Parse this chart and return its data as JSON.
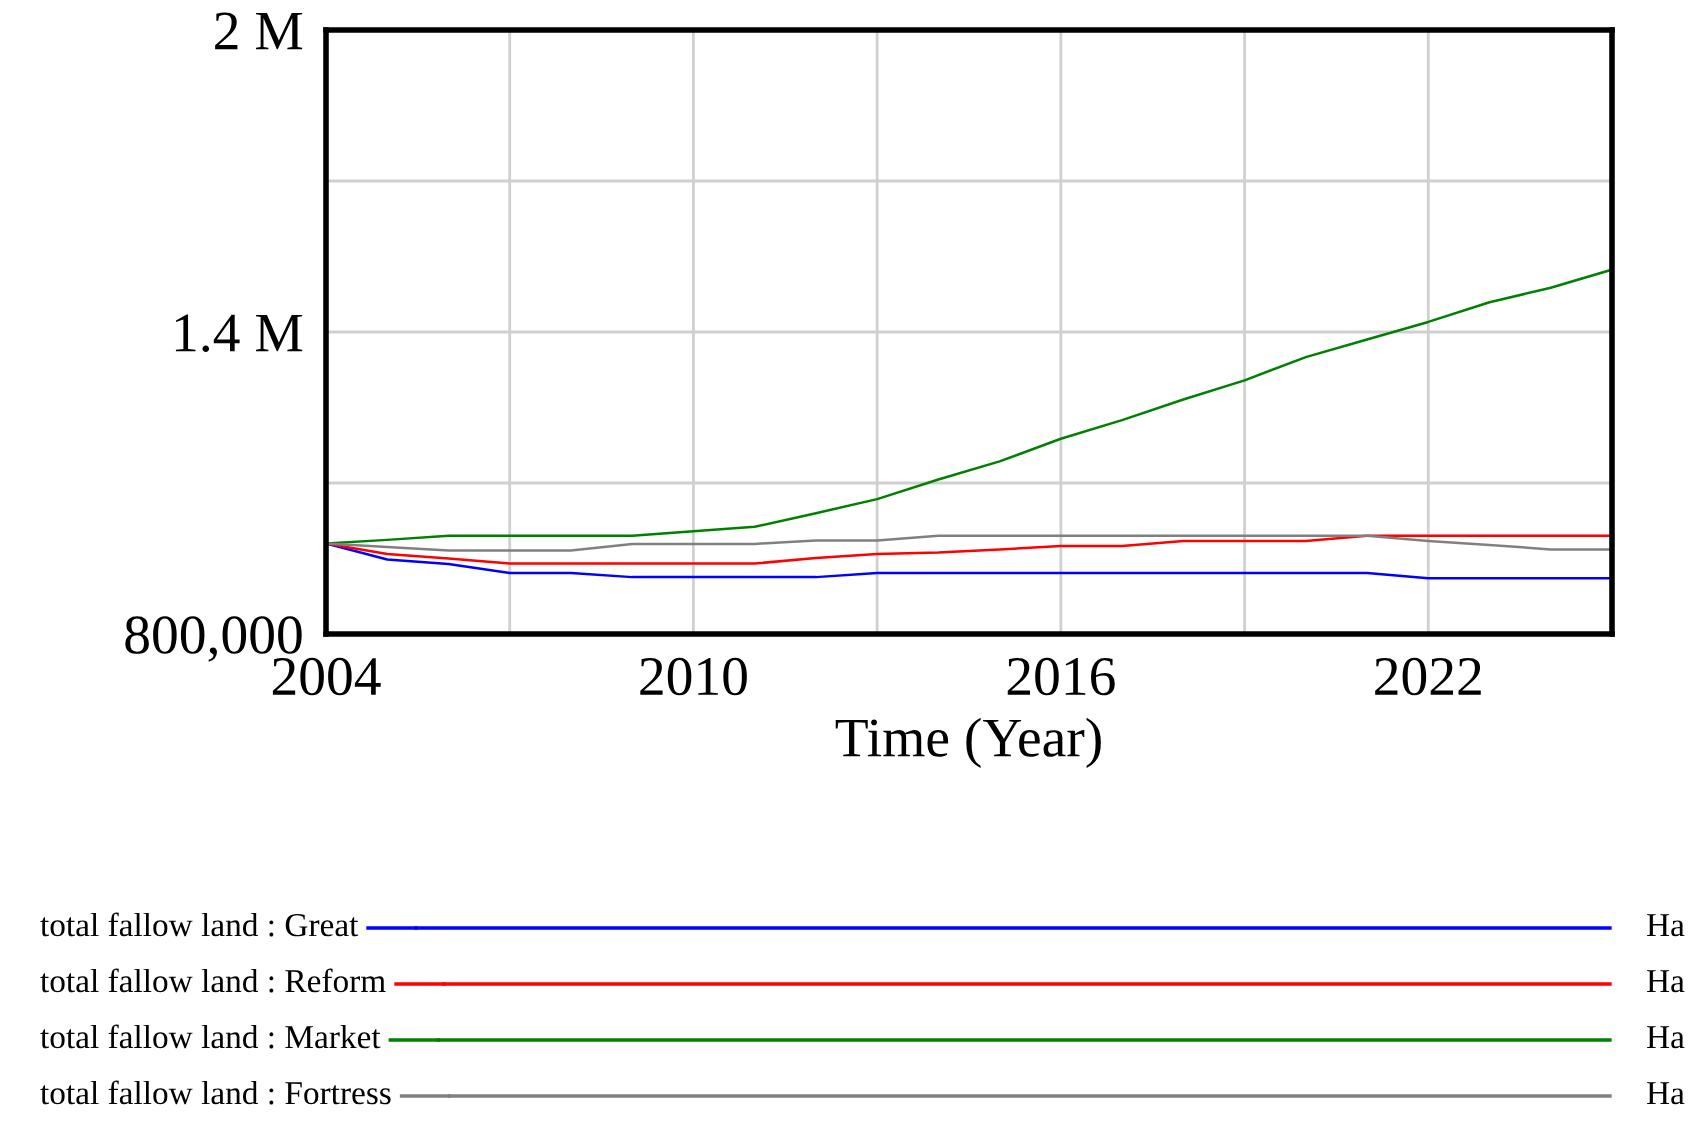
{
  "chart_data": {
    "type": "line",
    "xlabel": "Time (Year)",
    "x": [
      2004,
      2005,
      2006,
      2007,
      2008,
      2009,
      2010,
      2011,
      2012,
      2013,
      2014,
      2015,
      2016,
      2017,
      2018,
      2019,
      2020,
      2021,
      2022,
      2023,
      2024,
      2025
    ],
    "series": [
      {
        "name": "total fallow land : Great",
        "color": "#0000ff",
        "values": [
          980000,
          948000,
          939000,
          921000,
          921000,
          913000,
          913000,
          913000,
          913000,
          921000,
          921000,
          921000,
          921000,
          921000,
          921000,
          921000,
          921000,
          921000,
          911000,
          911000,
          911000,
          911000
        ]
      },
      {
        "name": "total fallow land : Reform",
        "color": "#ff0000",
        "values": [
          980000,
          959000,
          950000,
          940000,
          940000,
          940000,
          940000,
          940000,
          951000,
          959000,
          962000,
          968000,
          975000,
          975000,
          985000,
          985000,
          985000,
          995000,
          995000,
          995000,
          995000,
          995000
        ]
      },
      {
        "name": "total fallow land : Market",
        "color": "#008000",
        "values": [
          980000,
          987000,
          995000,
          995000,
          995000,
          995000,
          1004000,
          1013000,
          1040000,
          1068000,
          1107000,
          1143000,
          1188000,
          1225000,
          1266000,
          1304000,
          1350000,
          1385000,
          1420000,
          1459000,
          1488000,
          1524000
        ]
      },
      {
        "name": "total fallow land : Fortress",
        "color": "#808080",
        "values": [
          980000,
          973000,
          966000,
          966000,
          966000,
          979000,
          979000,
          979000,
          986000,
          986000,
          995000,
          995000,
          995000,
          995000,
          995000,
          995000,
          995000,
          995000,
          985000,
          977000,
          968000,
          968000
        ]
      }
    ],
    "annotations": [
      "Ha",
      "Ha",
      "Ha",
      "Ha"
    ],
    "xlim": [
      2004,
      2025
    ],
    "ylim": [
      800000,
      2000000
    ],
    "xticks": [
      2004,
      {
        "value": 2007,
        "label": null
      },
      2010,
      {
        "value": 2013,
        "label": null
      },
      2016,
      {
        "value": 2019,
        "label": null
      },
      2022
    ],
    "yticks": [
      {
        "value": 800000,
        "label": "800,000"
      },
      {
        "value": 1100000,
        "label": null
      },
      {
        "value": 1400000,
        "label": "1.4 M"
      },
      {
        "value": 1700000,
        "label": null
      },
      {
        "value": 2000000,
        "label": "2 M"
      }
    ],
    "grid": true,
    "legend": "bottom",
    "line_style": "solid",
    "marker": "none"
  }
}
